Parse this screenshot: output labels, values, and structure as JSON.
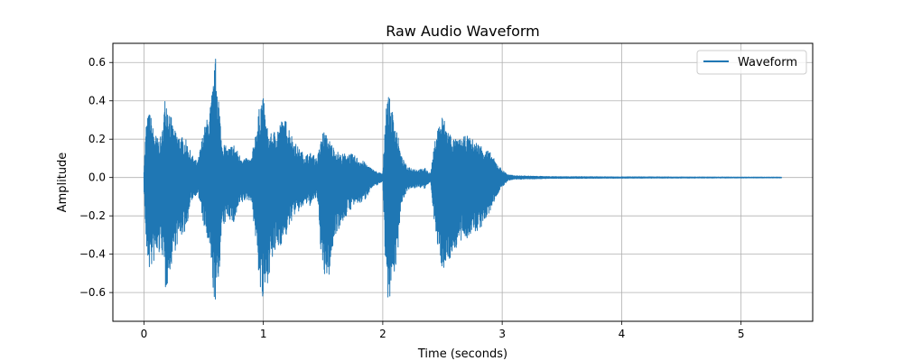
{
  "chart_data": {
    "type": "line",
    "title": "Raw Audio Waveform",
    "xlabel": "Time (seconds)",
    "ylabel": "Amplitude",
    "xlim": [
      -0.26,
      5.6
    ],
    "ylim": [
      -0.75,
      0.7
    ],
    "x_ticks": [
      0,
      1,
      2,
      3,
      4,
      5
    ],
    "y_ticks": [
      -0.6,
      -0.4,
      -0.2,
      0.0,
      0.2,
      0.4,
      0.6
    ],
    "x_tick_labels": [
      "0",
      "1",
      "2",
      "3",
      "4",
      "5"
    ],
    "y_tick_labels": [
      "−0.6",
      "−0.4",
      "−0.2",
      "0.0",
      "0.2",
      "0.4",
      "0.6"
    ],
    "grid": true,
    "legend_position": "top-right",
    "series": [
      {
        "name": "Waveform",
        "color": "#1f77b4",
        "envelope": {
          "x": [
            0.0,
            0.02,
            0.05,
            0.08,
            0.12,
            0.15,
            0.18,
            0.2,
            0.25,
            0.3,
            0.35,
            0.4,
            0.45,
            0.5,
            0.55,
            0.58,
            0.6,
            0.62,
            0.65,
            0.7,
            0.75,
            0.8,
            0.85,
            0.9,
            0.95,
            0.98,
            1.0,
            1.02,
            1.05,
            1.1,
            1.15,
            1.2,
            1.25,
            1.3,
            1.35,
            1.4,
            1.45,
            1.5,
            1.55,
            1.6,
            1.65,
            1.7,
            1.75,
            1.8,
            1.85,
            1.9,
            1.95,
            2.0,
            2.03,
            2.05,
            2.08,
            2.12,
            2.15,
            2.2,
            2.25,
            2.3,
            2.35,
            2.4,
            2.45,
            2.5,
            2.55,
            2.6,
            2.65,
            2.7,
            2.75,
            2.8,
            2.85,
            2.9,
            2.95,
            3.0,
            3.05,
            3.1,
            3.2,
            3.4,
            3.8,
            4.5,
            5.34
          ],
          "upper": [
            0.05,
            0.3,
            0.35,
            0.25,
            0.2,
            0.22,
            0.45,
            0.4,
            0.25,
            0.22,
            0.2,
            0.12,
            0.08,
            0.25,
            0.35,
            0.5,
            0.63,
            0.5,
            0.2,
            0.15,
            0.18,
            0.12,
            0.1,
            0.1,
            0.3,
            0.42,
            0.42,
            0.3,
            0.22,
            0.25,
            0.3,
            0.3,
            0.2,
            0.15,
            0.12,
            0.13,
            0.1,
            0.25,
            0.2,
            0.15,
            0.12,
            0.13,
            0.12,
            0.1,
            0.08,
            0.05,
            0.03,
            0.02,
            0.45,
            0.43,
            0.35,
            0.25,
            0.12,
            0.06,
            0.05,
            0.04,
            0.05,
            0.02,
            0.25,
            0.33,
            0.25,
            0.2,
            0.2,
            0.22,
            0.2,
            0.18,
            0.16,
            0.13,
            0.08,
            0.04,
            0.015,
            0.01,
            0.008,
            0.005,
            0.004,
            0.003,
            0.002
          ],
          "lower": [
            -0.05,
            -0.4,
            -0.5,
            -0.45,
            -0.42,
            -0.38,
            -0.6,
            -0.55,
            -0.4,
            -0.32,
            -0.28,
            -0.12,
            -0.08,
            -0.25,
            -0.4,
            -0.6,
            -0.68,
            -0.6,
            -0.3,
            -0.2,
            -0.25,
            -0.15,
            -0.12,
            -0.12,
            -0.42,
            -0.65,
            -0.68,
            -0.6,
            -0.5,
            -0.4,
            -0.35,
            -0.3,
            -0.2,
            -0.18,
            -0.14,
            -0.15,
            -0.1,
            -0.55,
            -0.52,
            -0.3,
            -0.25,
            -0.2,
            -0.15,
            -0.14,
            -0.12,
            -0.06,
            -0.04,
            -0.02,
            -0.6,
            -0.65,
            -0.55,
            -0.45,
            -0.15,
            -0.07,
            -0.06,
            -0.05,
            -0.06,
            -0.02,
            -0.35,
            -0.48,
            -0.45,
            -0.38,
            -0.35,
            -0.32,
            -0.3,
            -0.28,
            -0.24,
            -0.18,
            -0.1,
            -0.05,
            -0.015,
            -0.01,
            -0.008,
            -0.005,
            -0.004,
            -0.003,
            -0.002
          ]
        }
      }
    ]
  }
}
